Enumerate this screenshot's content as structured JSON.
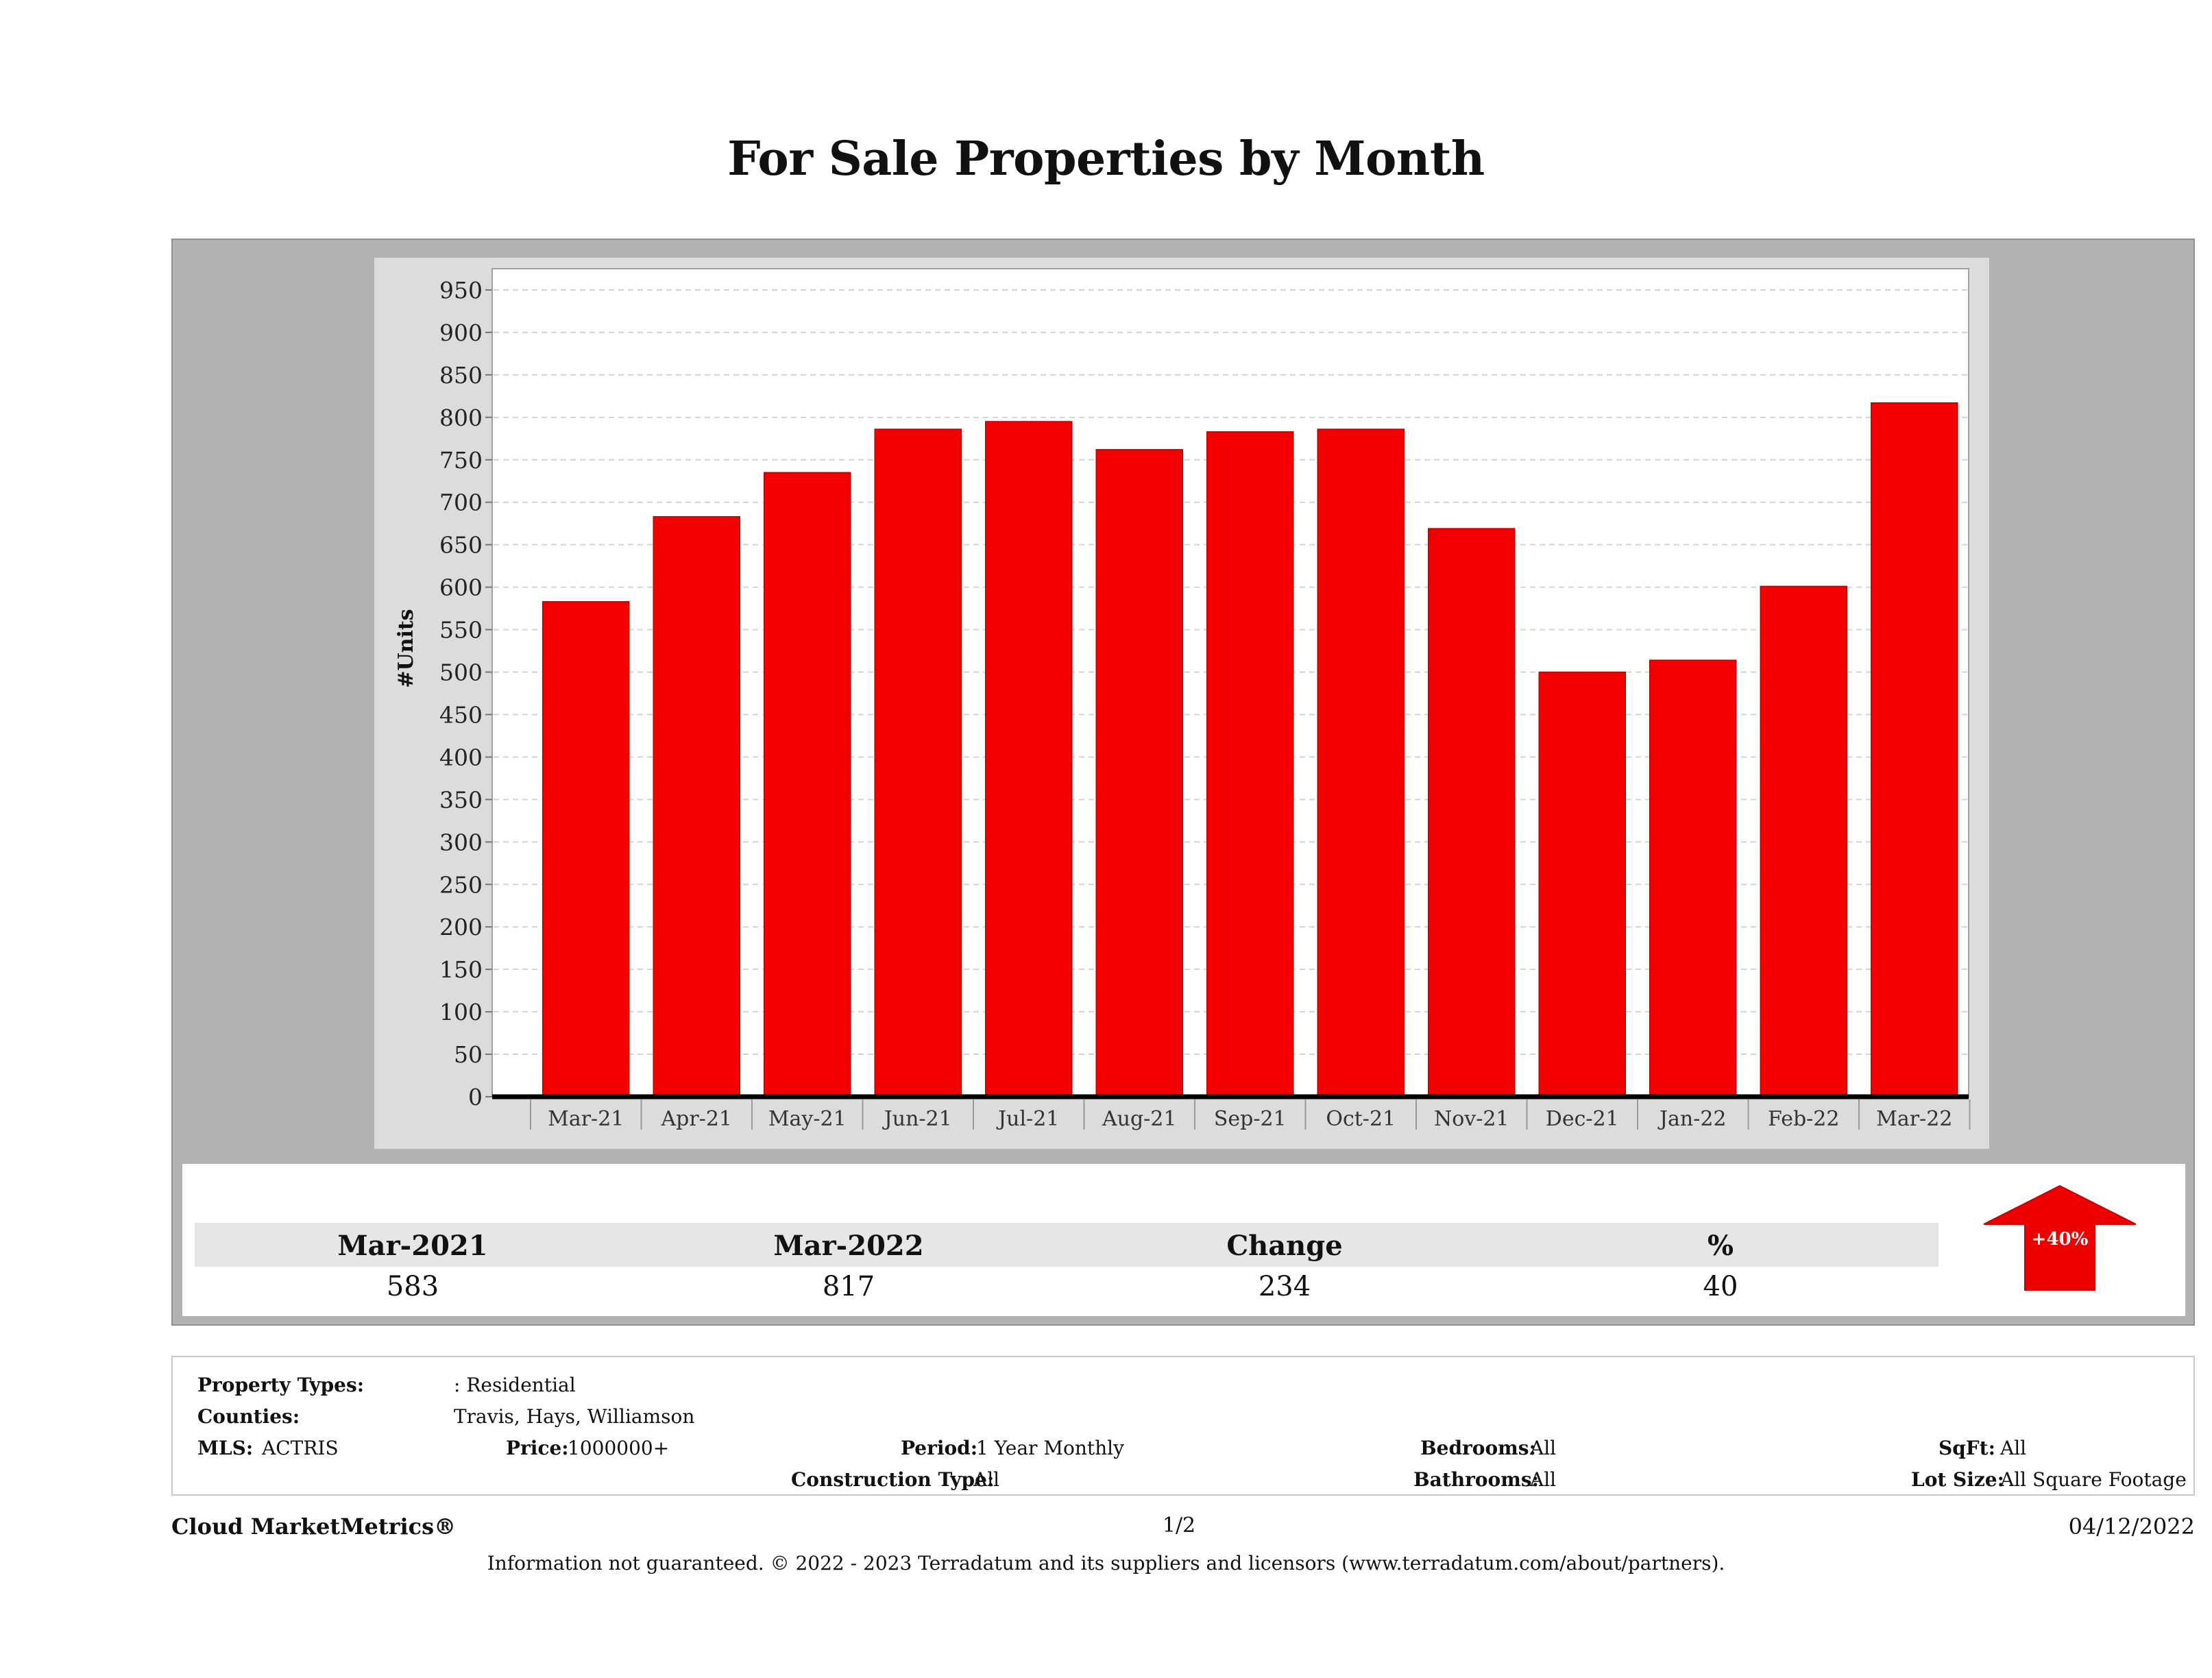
{
  "page": {
    "title": "For Sale Properties by Month"
  },
  "chart_data": {
    "type": "bar",
    "title": "For Sale Properties by Month",
    "ylabel": "#Units",
    "xlabel": "",
    "categories": [
      "Mar-21",
      "Apr-21",
      "May-21",
      "Jun-21",
      "Jul-21",
      "Aug-21",
      "Sep-21",
      "Oct-21",
      "Nov-21",
      "Dec-21",
      "Jan-22",
      "Feb-22",
      "Mar-22"
    ],
    "values": [
      583,
      683,
      735,
      786,
      795,
      762,
      783,
      786,
      669,
      500,
      514,
      601,
      817
    ],
    "ylim": [
      0,
      975
    ],
    "yticks": [
      0,
      50,
      100,
      150,
      200,
      250,
      300,
      350,
      400,
      450,
      500,
      550,
      600,
      650,
      700,
      750,
      800,
      850,
      900,
      950
    ],
    "grid": true,
    "bar_color": "#f50000"
  },
  "summary": {
    "headers": [
      "Mar-2021",
      "Mar-2022",
      "Change",
      "%"
    ],
    "values": [
      "583",
      "817",
      "234",
      "40"
    ],
    "badge": "+40%",
    "badge_direction": "up",
    "badge_color": "#ee0000"
  },
  "criteria": {
    "property_types_label": "Property Types:",
    "property_types_value": ": Residential",
    "counties_label": "Counties:",
    "counties_value": "Travis, Hays, Williamson",
    "mls_label": "MLS:",
    "mls_value": "ACTRIS",
    "price_label": "Price:",
    "price_value": "1000000+",
    "period_label": "Period:",
    "period_value": "1 Year Monthly",
    "construction_label": "Construction Type:",
    "construction_value": "All",
    "bedrooms_label": "Bedrooms:",
    "bedrooms_value": "All",
    "bathrooms_label": "Bathrooms:",
    "bathrooms_value": "All",
    "sqft_label": "SqFt:",
    "sqft_value": "All",
    "lotsize_label": "Lot Size:",
    "lotsize_value": "All Square Footage"
  },
  "footer": {
    "brand": "Cloud MarketMetrics®",
    "page_number": "1/2",
    "date": "04/12/2022",
    "disclaimer": "Information not guaranteed. © 2022 - 2023 Terradatum and its suppliers and licensors (www.terradatum.com/about/partners)."
  }
}
